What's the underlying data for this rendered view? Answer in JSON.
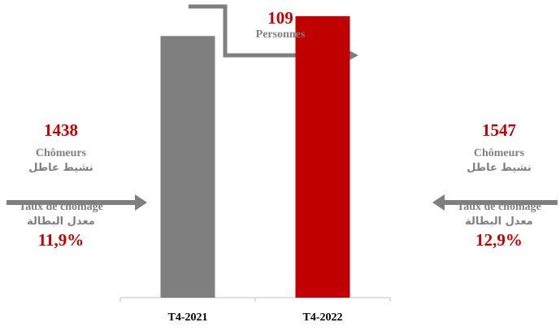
{
  "chart_data": {
    "type": "bar",
    "categories": [
      "T4-2021",
      "T4-2022"
    ],
    "values": [
      1438,
      1547
    ],
    "colors": [
      "#7f7f7f",
      "#c00000"
    ],
    "ylim": [
      0,
      1600
    ]
  },
  "change": {
    "value": "109",
    "label": "Personnes"
  },
  "left_panel": {
    "count": "1438",
    "count_label": "Chômeurs",
    "count_label_ar": "نشيط عاطل",
    "rate_label": "Taux de chômage",
    "rate_label_ar": "معدل البطالة",
    "rate": "11,9%"
  },
  "right_panel": {
    "count": "1547",
    "count_label": "Chômeurs",
    "count_label_ar": "نشيط عاطل",
    "rate_label": "Taux de chômage",
    "rate_label_ar": "معدل البطالة",
    "rate": "12,9%"
  },
  "colors": {
    "accent_red": "#c00000",
    "neutral_grey": "#7f7f7f"
  }
}
